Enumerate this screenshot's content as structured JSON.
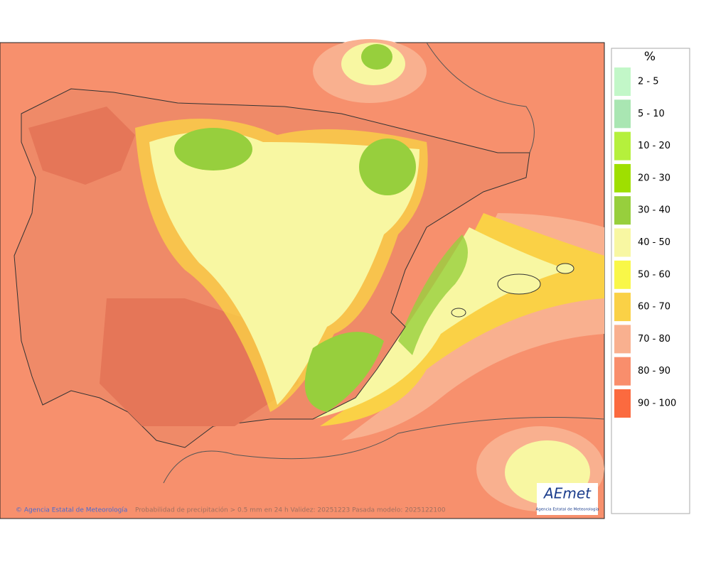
{
  "legend": {
    "title": "%",
    "items": [
      {
        "label": "2 - 5",
        "color": "#c2f7c8"
      },
      {
        "label": "5 - 10",
        "color": "#a9e6b2"
      },
      {
        "label": "10 - 20",
        "color": "#b5f03c"
      },
      {
        "label": "20 - 30",
        "color": "#9fdf00"
      },
      {
        "label": "30 - 40",
        "color": "#97cf3d"
      },
      {
        "label": "40 - 50",
        "color": "#f8f7a2"
      },
      {
        "label": "50 - 60",
        "color": "#f9f748"
      },
      {
        "label": "60 - 70",
        "color": "#fad146"
      },
      {
        "label": "70 - 80",
        "color": "#f9b08f"
      },
      {
        "label": "80 - 90",
        "color": "#f98e6c"
      },
      {
        "label": "90 - 100",
        "color": "#fb6a3f"
      }
    ]
  },
  "map": {
    "credit": "© Agencia Estatal de Meteorología",
    "caption": "Probabilidad de precipitación > 0.5 mm en 24 h Validez: 20251223 Pasada modelo: 2025122100",
    "logo": {
      "name": "AEmet",
      "subtitle": "Agencia Estatal de Meteorología"
    }
  }
}
